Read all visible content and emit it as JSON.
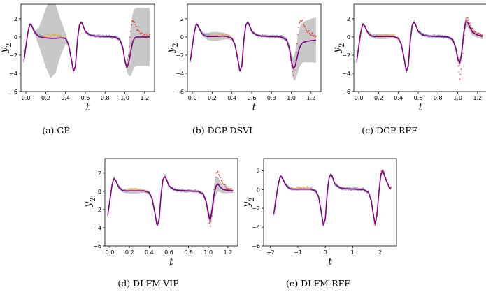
{
  "chart_data": [
    {
      "type": "line",
      "caption": "(a) GP",
      "xlabel": "t",
      "ylabel_base": "y",
      "ylabel_sub": "2",
      "xlim": [
        -0.05,
        1.3
      ],
      "ylim": [
        -6,
        3.6
      ],
      "xticks": [
        0.0,
        0.2,
        0.4,
        0.6,
        0.8,
        1.0,
        1.2
      ],
      "xtick_labels": [
        "0.0",
        "0.2",
        "0.4",
        "0.6",
        "0.8",
        "1.0",
        "1.2"
      ],
      "yticks": [
        -6,
        -4,
        -2,
        0,
        2
      ],
      "ytick_labels": [
        "−6",
        "−4",
        "−2",
        "0",
        "2"
      ],
      "t": [
        -0.02,
        0.0,
        0.02,
        0.04,
        0.06,
        0.08,
        0.1,
        0.13,
        0.16,
        0.2,
        0.25,
        0.3,
        0.35,
        0.4,
        0.43,
        0.46,
        0.48,
        0.5,
        0.52,
        0.54,
        0.56,
        0.58,
        0.6,
        0.65,
        0.7,
        0.8,
        0.9,
        0.95,
        0.98,
        1.0,
        1.02,
        1.04,
        1.06,
        1.08,
        1.1,
        1.12,
        1.15,
        1.2,
        1.25
      ],
      "observed": [
        -2.6,
        -1.0,
        0.6,
        1.5,
        1.2,
        0.7,
        0.35,
        0.15,
        0.1,
        0.1,
        0.15,
        0.2,
        0.1,
        -0.1,
        -0.8,
        -2.5,
        -3.8,
        -3.2,
        -0.4,
        1.3,
        1.7,
        1.2,
        0.6,
        0.2,
        0.1,
        0.05,
        0.0,
        -0.3,
        -1.2,
        -2.6,
        -3.3,
        -1.5,
        0.8,
        1.9,
        1.5,
        0.9,
        0.4,
        0.2,
        0.15
      ],
      "mean": [
        -2.6,
        -1.0,
        0.5,
        1.45,
        1.2,
        0.7,
        0.35,
        0.05,
        -0.05,
        -0.1,
        -0.15,
        -0.15,
        -0.1,
        -0.15,
        -0.8,
        -2.5,
        -3.8,
        -3.2,
        -0.4,
        1.3,
        1.65,
        1.2,
        0.6,
        0.2,
        0.1,
        0.05,
        0.0,
        -0.3,
        -1.2,
        -2.6,
        -3.4,
        -2.8,
        -1.6,
        -0.5,
        -0.1,
        0.0,
        0.0,
        0.0,
        0.0
      ],
      "band": [
        0.15,
        0.15,
        0.15,
        0.15,
        0.15,
        0.2,
        0.4,
        1.0,
        1.9,
        3.2,
        4.4,
        3.8,
        2.0,
        0.6,
        0.2,
        0.15,
        0.15,
        0.15,
        0.15,
        0.15,
        0.15,
        0.15,
        0.15,
        0.15,
        0.15,
        0.15,
        0.15,
        0.2,
        0.3,
        0.3,
        0.4,
        1.5,
        2.7,
        3.2,
        3.2,
        3.2,
        3.2,
        3.2,
        3.2
      ],
      "yellow_range": [
        0.18,
        0.4
      ],
      "red_range": [
        0.98,
        1.26
      ]
    },
    {
      "type": "line",
      "caption": "(b) DGP-DSVI",
      "xlabel": "t",
      "ylabel_base": "y",
      "ylabel_sub": "2",
      "xlim": [
        -0.05,
        1.3
      ],
      "ylim": [
        -6,
        3.6
      ],
      "xticks": [
        0.0,
        0.2,
        0.4,
        0.6,
        0.8,
        1.0,
        1.2
      ],
      "xtick_labels": [
        "0.0",
        "0.2",
        "0.4",
        "0.6",
        "0.8",
        "1.0",
        "1.2"
      ],
      "yticks": [
        -6,
        -4,
        -2,
        0,
        2
      ],
      "ytick_labels": [
        "−6",
        "−4",
        "−2",
        "0",
        "2"
      ],
      "t": [
        -0.02,
        0.0,
        0.02,
        0.04,
        0.06,
        0.08,
        0.1,
        0.13,
        0.16,
        0.2,
        0.25,
        0.3,
        0.35,
        0.4,
        0.43,
        0.46,
        0.48,
        0.5,
        0.52,
        0.54,
        0.56,
        0.58,
        0.6,
        0.65,
        0.7,
        0.8,
        0.9,
        0.95,
        0.98,
        1.0,
        1.02,
        1.04,
        1.06,
        1.08,
        1.1,
        1.12,
        1.15,
        1.2,
        1.25
      ],
      "observed": [
        -2.6,
        -1.0,
        0.6,
        1.5,
        1.2,
        0.7,
        0.35,
        0.15,
        0.1,
        0.1,
        0.15,
        0.2,
        0.1,
        -0.1,
        -0.8,
        -2.5,
        -3.8,
        -3.2,
        -0.4,
        1.3,
        1.7,
        1.2,
        0.6,
        0.2,
        0.1,
        0.05,
        0.0,
        -0.3,
        -1.2,
        -2.8,
        -4.2,
        -3.0,
        -0.5,
        1.5,
        2.0,
        1.6,
        0.8,
        0.3,
        0.1
      ],
      "mean": [
        -2.6,
        -1.0,
        0.5,
        1.45,
        1.2,
        0.7,
        0.35,
        0.1,
        0.05,
        0.05,
        0.05,
        0.1,
        0.05,
        -0.15,
        -0.8,
        -2.5,
        -3.8,
        -3.2,
        -0.4,
        1.3,
        1.65,
        1.2,
        0.6,
        0.2,
        0.1,
        0.05,
        0.0,
        -0.3,
        -1.2,
        -2.6,
        -3.5,
        -3.2,
        -2.2,
        -1.3,
        -0.8,
        -0.6,
        -0.5,
        -0.4,
        -0.35
      ],
      "band": [
        0.15,
        0.15,
        0.15,
        0.15,
        0.15,
        0.15,
        0.2,
        0.3,
        0.4,
        0.5,
        0.5,
        0.4,
        0.3,
        0.2,
        0.2,
        0.15,
        0.15,
        0.15,
        0.15,
        0.15,
        0.15,
        0.15,
        0.15,
        0.15,
        0.15,
        0.15,
        0.15,
        0.2,
        0.5,
        0.9,
        1.2,
        1.6,
        1.9,
        2.1,
        2.2,
        2.2,
        2.3,
        2.4,
        2.5
      ],
      "yellow_range": [
        0.18,
        0.4
      ],
      "red_range": [
        0.98,
        1.26
      ]
    },
    {
      "type": "line",
      "caption": "(c) DGP-RFF",
      "xlabel": "t",
      "ylabel_base": "y",
      "ylabel_sub": "2",
      "xlim": [
        -0.05,
        1.3
      ],
      "ylim": [
        -6,
        3.6
      ],
      "xticks": [
        0.0,
        0.2,
        0.4,
        0.6,
        0.8,
        1.0,
        1.2
      ],
      "xtick_labels": [
        "0.0",
        "0.2",
        "0.4",
        "0.6",
        "0.8",
        "1.0",
        "1.2"
      ],
      "yticks": [
        -6,
        -4,
        -2,
        0,
        2
      ],
      "ytick_labels": [
        "−6",
        "−4",
        "−2",
        "0",
        "2"
      ],
      "t": [
        -0.02,
        0.0,
        0.02,
        0.04,
        0.06,
        0.08,
        0.1,
        0.13,
        0.16,
        0.2,
        0.25,
        0.3,
        0.35,
        0.4,
        0.43,
        0.46,
        0.48,
        0.5,
        0.52,
        0.54,
        0.56,
        0.58,
        0.6,
        0.65,
        0.7,
        0.8,
        0.9,
        0.95,
        0.98,
        1.0,
        1.02,
        1.04,
        1.06,
        1.08,
        1.1,
        1.12,
        1.15,
        1.2,
        1.25
      ],
      "observed": [
        -2.6,
        -1.0,
        0.6,
        1.5,
        1.2,
        0.7,
        0.35,
        0.15,
        0.1,
        0.1,
        0.15,
        0.2,
        0.1,
        -0.1,
        -0.8,
        -2.5,
        -3.8,
        -3.2,
        -0.4,
        1.3,
        1.7,
        1.2,
        0.6,
        0.2,
        0.1,
        0.05,
        0.0,
        -0.3,
        -1.2,
        -2.8,
        -4.5,
        -3.2,
        -0.6,
        1.6,
        2.1,
        1.5,
        0.8,
        0.3,
        0.1
      ],
      "mean": [
        -2.6,
        -1.0,
        0.5,
        1.45,
        1.2,
        0.7,
        0.35,
        0.1,
        0.05,
        0.05,
        0.05,
        0.05,
        0.05,
        -0.15,
        -0.8,
        -2.5,
        -3.8,
        -3.2,
        -0.4,
        1.3,
        1.65,
        1.2,
        0.6,
        0.2,
        0.1,
        0.05,
        0.0,
        -0.3,
        -1.2,
        -2.4,
        -2.9,
        -1.8,
        0.4,
        1.7,
        1.6,
        1.1,
        0.5,
        0.2,
        0.05
      ],
      "band": [
        0.15,
        0.15,
        0.15,
        0.15,
        0.15,
        0.15,
        0.2,
        0.2,
        0.25,
        0.3,
        0.3,
        0.25,
        0.2,
        0.2,
        0.2,
        0.15,
        0.15,
        0.15,
        0.15,
        0.15,
        0.15,
        0.15,
        0.15,
        0.15,
        0.15,
        0.15,
        0.15,
        0.2,
        0.3,
        0.4,
        0.5,
        0.6,
        0.6,
        0.6,
        0.5,
        0.4,
        0.35,
        0.3,
        0.3
      ],
      "yellow_range": [
        0.18,
        0.4
      ],
      "red_range": [
        0.98,
        1.26
      ]
    },
    {
      "type": "line",
      "caption": "(d) DLFM-VIP",
      "xlabel": "t",
      "ylabel_base": "y",
      "ylabel_sub": "2",
      "xlim": [
        -0.05,
        1.3
      ],
      "ylim": [
        -6,
        3.6
      ],
      "xticks": [
        0.0,
        0.2,
        0.4,
        0.6,
        0.8,
        1.0,
        1.2
      ],
      "xtick_labels": [
        "0.0",
        "0.2",
        "0.4",
        "0.6",
        "0.8",
        "1.0",
        "1.2"
      ],
      "yticks": [
        -6,
        -4,
        -2,
        0,
        2
      ],
      "ytick_labels": [
        "−6",
        "−4",
        "−2",
        "0",
        "2"
      ],
      "t": [
        -0.02,
        0.0,
        0.02,
        0.04,
        0.06,
        0.08,
        0.1,
        0.13,
        0.16,
        0.2,
        0.25,
        0.3,
        0.35,
        0.4,
        0.43,
        0.46,
        0.48,
        0.5,
        0.52,
        0.54,
        0.56,
        0.58,
        0.6,
        0.65,
        0.7,
        0.8,
        0.9,
        0.95,
        0.98,
        1.0,
        1.02,
        1.04,
        1.06,
        1.08,
        1.1,
        1.12,
        1.15,
        1.2,
        1.25
      ],
      "observed": [
        -2.6,
        -1.0,
        0.6,
        1.5,
        1.2,
        0.7,
        0.35,
        0.15,
        0.1,
        0.1,
        0.15,
        0.2,
        0.1,
        -0.1,
        -0.8,
        -2.5,
        -3.8,
        -3.2,
        -0.4,
        1.3,
        1.7,
        1.2,
        0.6,
        0.2,
        0.1,
        0.05,
        0.0,
        -0.3,
        -1.2,
        -2.8,
        -4.0,
        -2.5,
        0.2,
        1.8,
        2.1,
        1.5,
        0.7,
        0.3,
        0.1
      ],
      "mean": [
        -2.6,
        -1.0,
        0.5,
        1.45,
        1.2,
        0.7,
        0.35,
        0.1,
        0.05,
        0.05,
        0.05,
        0.05,
        0.05,
        -0.15,
        -0.8,
        -2.5,
        -3.8,
        -3.2,
        -0.4,
        1.3,
        1.65,
        1.2,
        0.6,
        0.2,
        0.1,
        0.05,
        0.0,
        -0.3,
        -1.2,
        -2.4,
        -3.2,
        -2.0,
        -0.3,
        0.6,
        0.8,
        0.5,
        0.2,
        0.1,
        0.05
      ],
      "band": [
        0.15,
        0.15,
        0.15,
        0.15,
        0.15,
        0.15,
        0.2,
        0.2,
        0.25,
        0.3,
        0.3,
        0.25,
        0.2,
        0.2,
        0.2,
        0.15,
        0.15,
        0.15,
        0.15,
        0.15,
        0.15,
        0.15,
        0.15,
        0.15,
        0.15,
        0.15,
        0.15,
        0.2,
        0.3,
        0.5,
        0.7,
        0.9,
        1.0,
        1.0,
        0.8,
        0.6,
        0.4,
        0.3,
        0.25
      ],
      "yellow_range": [
        0.18,
        0.4
      ],
      "red_range": [
        0.98,
        1.26
      ]
    },
    {
      "type": "line",
      "caption": "(e) DLFM-RFF",
      "xlabel": "t",
      "ylabel_base": "y",
      "ylabel_sub": "2",
      "xlim": [
        -2.25,
        2.6
      ],
      "ylim": [
        -6,
        3.3
      ],
      "xticks": [
        -2,
        -1,
        0,
        1,
        2
      ],
      "xtick_labels": [
        "−2",
        "−1",
        "0",
        "1",
        "2"
      ],
      "yticks": [
        -6,
        -4,
        -2,
        0,
        2
      ],
      "ytick_labels": [
        "−6",
        "−4",
        "−2",
        "0",
        "2"
      ],
      "t": [
        -1.88,
        -1.8,
        -1.72,
        -1.64,
        -1.56,
        -1.48,
        -1.4,
        -1.3,
        -1.2,
        -1.05,
        -0.88,
        -0.7,
        -0.52,
        -0.35,
        -0.24,
        -0.14,
        -0.07,
        0.0,
        0.07,
        0.14,
        0.21,
        0.28,
        0.35,
        0.52,
        0.7,
        1.05,
        1.4,
        1.58,
        1.68,
        1.75,
        1.82,
        1.89,
        1.96,
        2.03,
        2.1,
        2.17,
        2.28,
        2.35,
        2.4
      ],
      "observed": [
        -2.6,
        -1.0,
        0.6,
        1.5,
        1.2,
        0.7,
        0.35,
        0.15,
        0.1,
        0.1,
        0.15,
        0.2,
        0.1,
        -0.1,
        -0.8,
        -2.5,
        -3.8,
        -3.2,
        -0.4,
        1.3,
        1.7,
        1.2,
        0.6,
        0.2,
        0.1,
        0.05,
        0.0,
        -0.3,
        -1.2,
        -2.6,
        -3.9,
        -2.8,
        -0.2,
        1.7,
        2.2,
        1.5,
        0.6,
        0.2,
        0.1
      ],
      "mean": [
        -2.6,
        -1.0,
        0.5,
        1.45,
        1.2,
        0.7,
        0.35,
        0.1,
        0.05,
        0.05,
        0.05,
        0.05,
        0.05,
        -0.15,
        -0.8,
        -2.5,
        -3.8,
        -3.2,
        -0.4,
        1.3,
        1.65,
        1.2,
        0.6,
        0.2,
        0.1,
        0.05,
        0.0,
        -0.3,
        -1.2,
        -2.6,
        -3.7,
        -2.6,
        -0.2,
        1.6,
        2.0,
        1.4,
        0.6,
        0.2,
        0.1
      ],
      "band": [
        0.15,
        0.15,
        0.15,
        0.15,
        0.15,
        0.15,
        0.15,
        0.15,
        0.15,
        0.15,
        0.15,
        0.15,
        0.15,
        0.15,
        0.15,
        0.15,
        0.15,
        0.15,
        0.15,
        0.15,
        0.15,
        0.15,
        0.15,
        0.15,
        0.15,
        0.15,
        0.15,
        0.15,
        0.2,
        0.25,
        0.3,
        0.3,
        0.3,
        0.3,
        0.25,
        0.2,
        0.2,
        0.15,
        0.15
      ],
      "yellow_range": [
        -1.2,
        -0.52
      ],
      "red_range": [
        1.7,
        2.4
      ]
    }
  ],
  "colors": {
    "mean": "#800080",
    "band": "#c8c8c8",
    "train": "#7a96b4",
    "gap": "#e8a820",
    "test": "#e02828",
    "axis": "#000000"
  }
}
